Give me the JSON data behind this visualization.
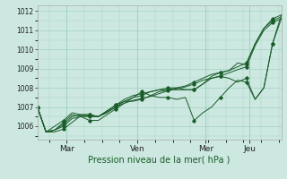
{
  "title": "",
  "xlabel": "Pression niveau de la mer( hPa )",
  "bg_color": "#cce8e0",
  "grid_color": "#99ccbb",
  "line_color": "#1a5c2a",
  "ylim": [
    1005.3,
    1012.3
  ],
  "yticks": [
    1006,
    1007,
    1008,
    1009,
    1010,
    1011,
    1012
  ],
  "x_tick_labels": [
    "Mar",
    "Ven",
    "Mer",
    "Jeu"
  ],
  "x_tick_positions": [
    0.12,
    0.41,
    0.69,
    0.87
  ],
  "xlim": [
    0.0,
    1.0
  ],
  "series": [
    [
      1007.0,
      1005.7,
      1005.7,
      1005.85,
      1006.2,
      1006.55,
      1006.55,
      1006.5,
      1006.75,
      1007.0,
      1007.2,
      1007.35,
      1007.45,
      1007.55,
      1007.7,
      1007.85,
      1007.95,
      1008.05,
      1008.2,
      1008.4,
      1008.5,
      1008.62,
      1008.78,
      1008.95,
      1009.1,
      1010.2,
      1011.0,
      1011.4,
      1011.6
    ],
    [
      1007.0,
      1005.7,
      1005.8,
      1006.0,
      1006.4,
      1006.5,
      1006.5,
      1006.5,
      1006.8,
      1007.1,
      1007.3,
      1007.3,
      1007.4,
      1007.6,
      1007.8,
      1007.9,
      1008.0,
      1008.1,
      1008.3,
      1008.5,
      1008.7,
      1008.8,
      1008.9,
      1009.1,
      1009.3,
      1010.3,
      1011.1,
      1011.5,
      1011.7
    ],
    [
      1007.0,
      1005.7,
      1005.8,
      1006.1,
      1006.5,
      1006.6,
      1006.6,
      1006.5,
      1006.7,
      1007.0,
      1007.3,
      1007.5,
      1007.6,
      1007.8,
      1007.9,
      1007.9,
      1007.9,
      1007.9,
      1007.9,
      1008.2,
      1008.5,
      1008.6,
      1008.5,
      1008.3,
      1008.5,
      1007.4,
      1008.0,
      1010.3,
      1011.6
    ],
    [
      1007.0,
      1005.7,
      1005.8,
      1006.2,
      1006.6,
      1006.5,
      1006.3,
      1006.3,
      1006.6,
      1006.9,
      1007.2,
      1007.5,
      1007.8,
      1007.6,
      1007.5,
      1007.5,
      1007.4,
      1007.5,
      1006.3,
      1006.7,
      1007.0,
      1007.5,
      1008.0,
      1008.4,
      1008.3,
      1007.4,
      1008.0,
      1010.3,
      1011.8
    ],
    [
      1007.0,
      1005.7,
      1006.0,
      1006.3,
      1006.7,
      1006.6,
      1006.6,
      1006.5,
      1006.8,
      1007.1,
      1007.4,
      1007.6,
      1007.7,
      1007.8,
      1007.9,
      1008.0,
      1008.0,
      1007.9,
      1007.9,
      1008.2,
      1008.6,
      1008.8,
      1008.9,
      1009.3,
      1009.2,
      1010.3,
      1011.1,
      1011.6,
      1011.8
    ]
  ]
}
